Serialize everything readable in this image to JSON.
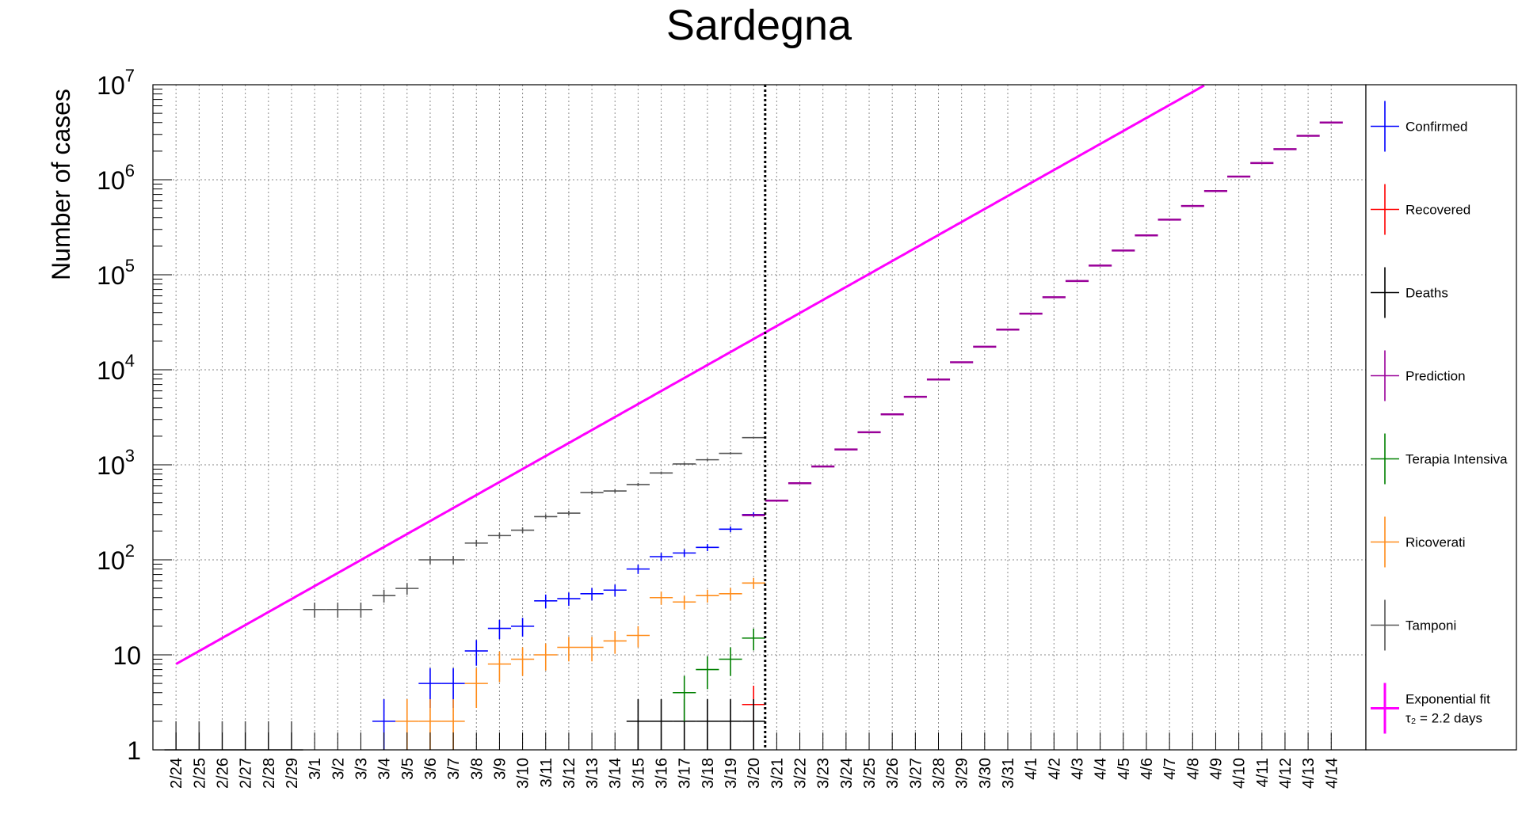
{
  "chart_data": {
    "type": "line",
    "title": "Sardegna",
    "ylabel": "Number of cases",
    "xlabel": "",
    "y_scale": "log",
    "ylim": [
      1,
      10000000
    ],
    "y_ticks": [
      {
        "value": 1,
        "base": "1",
        "exp": ""
      },
      {
        "value": 10,
        "base": "10",
        "exp": ""
      },
      {
        "value": 100,
        "base": "10",
        "exp": "2"
      },
      {
        "value": 1000,
        "base": "10",
        "exp": "3"
      },
      {
        "value": 10000,
        "base": "10",
        "exp": "4"
      },
      {
        "value": 100000,
        "base": "10",
        "exp": "5"
      },
      {
        "value": 1000000,
        "base": "10",
        "exp": "6"
      },
      {
        "value": 10000000,
        "base": "10",
        "exp": "7"
      }
    ],
    "categories": [
      "2/24",
      "2/25",
      "2/26",
      "2/27",
      "2/28",
      "2/29",
      "3/1",
      "3/2",
      "3/3",
      "3/4",
      "3/5",
      "3/6",
      "3/7",
      "3/8",
      "3/9",
      "3/10",
      "3/11",
      "3/12",
      "3/13",
      "3/14",
      "3/15",
      "3/16",
      "3/17",
      "3/18",
      "3/19",
      "3/20",
      "3/21",
      "3/22",
      "3/23",
      "3/24",
      "3/25",
      "3/26",
      "3/27",
      "3/28",
      "3/29",
      "3/30",
      "3/31",
      "4/1",
      "4/2",
      "4/3",
      "4/4",
      "4/5",
      "4/6",
      "4/7",
      "4/8",
      "4/9",
      "4/10",
      "4/11",
      "4/12",
      "4/13",
      "4/14"
    ],
    "grid": true,
    "vertical_marker": "3/20",
    "legend_position": "right",
    "series": [
      {
        "name": "Confirmed",
        "color": "#0000ff",
        "points": [
          [
            "3/4",
            2
          ],
          [
            "3/6",
            5
          ],
          [
            "3/7",
            5
          ],
          [
            "3/8",
            11
          ],
          [
            "3/9",
            19
          ],
          [
            "3/10",
            20
          ],
          [
            "3/11",
            37
          ],
          [
            "3/12",
            39
          ],
          [
            "3/13",
            44
          ],
          [
            "3/14",
            48
          ],
          [
            "3/15",
            80
          ],
          [
            "3/16",
            108
          ],
          [
            "3/17",
            118
          ],
          [
            "3/18",
            135
          ],
          [
            "3/19",
            210
          ],
          [
            "3/20",
            300
          ]
        ]
      },
      {
        "name": "Recovered",
        "color": "#ff0000",
        "points": [
          [
            "3/20",
            3
          ]
        ]
      },
      {
        "name": "Deaths",
        "color": "#000000",
        "points": [
          [
            "3/15",
            2
          ],
          [
            "3/16",
            2
          ],
          [
            "3/17",
            2
          ],
          [
            "3/18",
            2
          ],
          [
            "3/19",
            2
          ],
          [
            "3/20",
            2
          ]
        ]
      },
      {
        "name": "Prediction",
        "color": "#990099",
        "points": [
          [
            "3/20",
            295
          ],
          [
            "3/21",
            420
          ],
          [
            "3/22",
            640
          ],
          [
            "3/23",
            960
          ],
          [
            "3/24",
            1450
          ],
          [
            "3/25",
            2200
          ],
          [
            "3/26",
            3400
          ],
          [
            "3/27",
            5200
          ],
          [
            "3/28",
            7900
          ],
          [
            "3/29",
            12000
          ],
          [
            "3/30",
            17500
          ],
          [
            "3/31",
            26500
          ],
          [
            "4/1",
            39000
          ],
          [
            "4/2",
            58000
          ],
          [
            "4/3",
            86000
          ],
          [
            "4/4",
            125000
          ],
          [
            "4/5",
            180000
          ],
          [
            "4/6",
            260000
          ],
          [
            "4/7",
            380000
          ],
          [
            "4/8",
            530000
          ],
          [
            "4/9",
            760000
          ],
          [
            "4/10",
            1080000
          ],
          [
            "4/11",
            1500000
          ],
          [
            "4/12",
            2100000
          ],
          [
            "4/13",
            2900000
          ],
          [
            "4/14",
            4000000
          ]
        ]
      },
      {
        "name": "Terapia Intensiva",
        "color": "#008000",
        "points": [
          [
            "3/17",
            4
          ],
          [
            "3/18",
            7
          ],
          [
            "3/19",
            9
          ],
          [
            "3/20",
            15
          ]
        ]
      },
      {
        "name": "Ricoverati",
        "color": "#ff8c1a",
        "points": [
          [
            "3/5",
            2
          ],
          [
            "3/6",
            2
          ],
          [
            "3/7",
            2
          ],
          [
            "3/8",
            5
          ],
          [
            "3/9",
            8
          ],
          [
            "3/10",
            9
          ],
          [
            "3/11",
            10
          ],
          [
            "3/12",
            12
          ],
          [
            "3/13",
            12
          ],
          [
            "3/14",
            14
          ],
          [
            "3/15",
            16
          ],
          [
            "3/16",
            40
          ],
          [
            "3/17",
            36
          ],
          [
            "3/18",
            42
          ],
          [
            "3/19",
            44
          ],
          [
            "3/20",
            57
          ]
        ]
      },
      {
        "name": "Tamponi",
        "color": "#555555",
        "points": [
          [
            "2/24",
            1
          ],
          [
            "2/25",
            1
          ],
          [
            "2/26",
            1
          ],
          [
            "2/27",
            1
          ],
          [
            "2/28",
            1
          ],
          [
            "2/29",
            1
          ],
          [
            "3/1",
            30
          ],
          [
            "3/2",
            30
          ],
          [
            "3/3",
            30
          ],
          [
            "3/4",
            42
          ],
          [
            "3/5",
            50
          ],
          [
            "3/6",
            100
          ],
          [
            "3/7",
            100
          ],
          [
            "3/8",
            150
          ],
          [
            "3/9",
            180
          ],
          [
            "3/10",
            205
          ],
          [
            "3/11",
            285
          ],
          [
            "3/12",
            310
          ],
          [
            "3/13",
            510
          ],
          [
            "3/14",
            530
          ],
          [
            "3/15",
            620
          ],
          [
            "3/16",
            820
          ],
          [
            "3/17",
            1020
          ],
          [
            "3/18",
            1130
          ],
          [
            "3/19",
            1320
          ],
          [
            "3/20",
            1930
          ]
        ]
      },
      {
        "name": "Exponential fit",
        "sub": "τ₂ = 2.2 days",
        "color": "#ff00ff",
        "fit": {
          "amplitude": 8,
          "t0_category": "2/24",
          "doubling_days": 2.2,
          "baseline": 0
        }
      }
    ]
  }
}
